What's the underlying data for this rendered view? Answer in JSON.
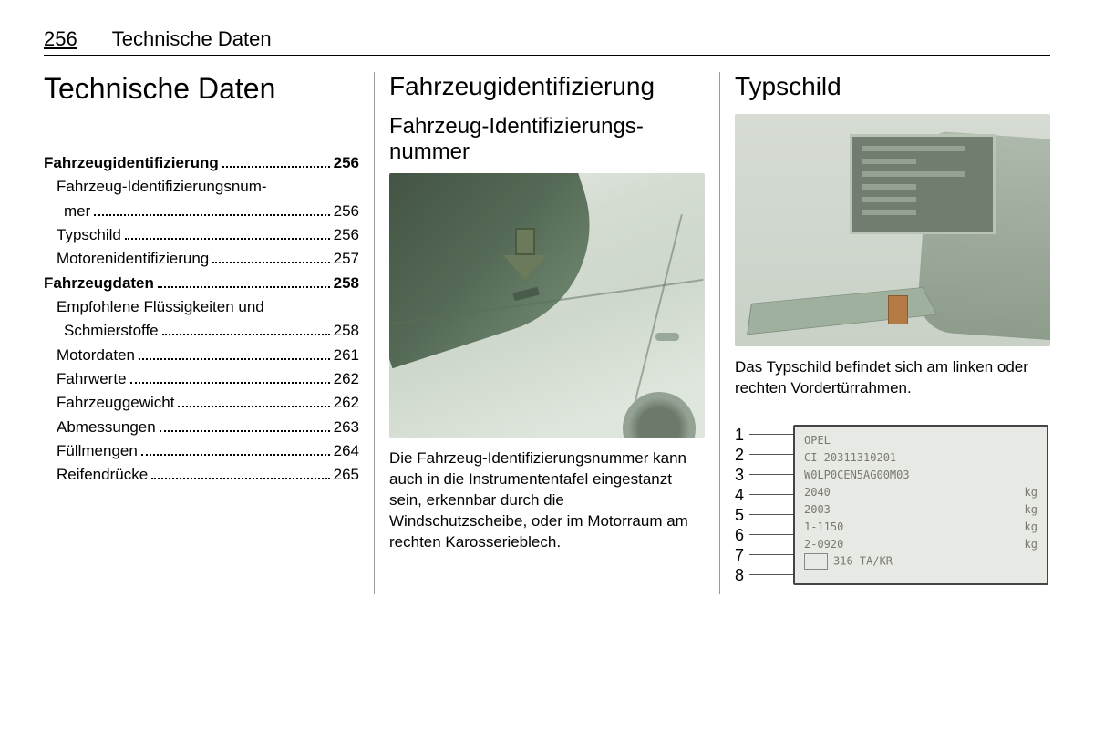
{
  "header": {
    "page_number": "256",
    "title": "Technische Daten"
  },
  "col1": {
    "title": "Technische Daten",
    "toc": [
      {
        "label": "Fahrzeugidentifizierung",
        "page": "256",
        "bold": true,
        "indent": false
      },
      {
        "label": "Fahrzeug-Identifizierungsnum-",
        "page": "",
        "bold": false,
        "indent": true,
        "nodots": true
      },
      {
        "label": "mer",
        "page": "256",
        "bold": false,
        "indent": true,
        "extra_indent": true
      },
      {
        "label": "Typschild",
        "page": "256",
        "bold": false,
        "indent": true
      },
      {
        "label": "Motorenidentifizierung",
        "page": "257",
        "bold": false,
        "indent": true
      },
      {
        "label": "Fahrzeugdaten",
        "page": "258",
        "bold": true,
        "indent": false
      },
      {
        "label": "Empfohlene Flüssigkeiten und",
        "page": "",
        "bold": false,
        "indent": true,
        "nodots": true
      },
      {
        "label": "Schmierstoffe",
        "page": "258",
        "bold": false,
        "indent": true,
        "extra_indent": true
      },
      {
        "label": "Motordaten",
        "page": "261",
        "bold": false,
        "indent": true
      },
      {
        "label": "Fahrwerte",
        "page": "262",
        "bold": false,
        "indent": true
      },
      {
        "label": "Fahrzeuggewicht",
        "page": "262",
        "bold": false,
        "indent": true
      },
      {
        "label": "Abmessungen",
        "page": "263",
        "bold": false,
        "indent": true
      },
      {
        "label": "Füllmengen",
        "page": "264",
        "bold": false,
        "indent": true
      },
      {
        "label": "Reifendrücke",
        "page": "265",
        "bold": false,
        "indent": true
      }
    ]
  },
  "col2": {
    "title": "Fahrzeugidentifizierung",
    "subtitle": "Fahrzeug-Identifizierungs­nummer",
    "body": "Die Fahrzeug-Identifizierungsnum­mer kann auch in die Instrumententa­fel eingestanzt sein, erkennbar durch die Windschutzscheibe, oder im Motorraum am rechten Karosserie­blech."
  },
  "col3": {
    "title": "Typschild",
    "body": "Das Typschild befindet sich am linken oder rechten Vordertürrahmen.",
    "plate_numbers": [
      "1",
      "2",
      "3",
      "4",
      "5",
      "6",
      "7",
      "8"
    ],
    "plate_rows": [
      {
        "l": "OPEL",
        "kg": ""
      },
      {
        "l": "CI-20311310201",
        "kg": ""
      },
      {
        "l": "W0LP0CEN5AG00M03",
        "kg": ""
      },
      {
        "l": "2040",
        "kg": "kg"
      },
      {
        "l": "2003",
        "kg": "kg"
      },
      {
        "l": "1-1150",
        "kg": "kg"
      },
      {
        "l": "2-0920",
        "kg": "kg"
      },
      {
        "l": "316 TA/KR",
        "kg": "",
        "box": true
      }
    ]
  }
}
